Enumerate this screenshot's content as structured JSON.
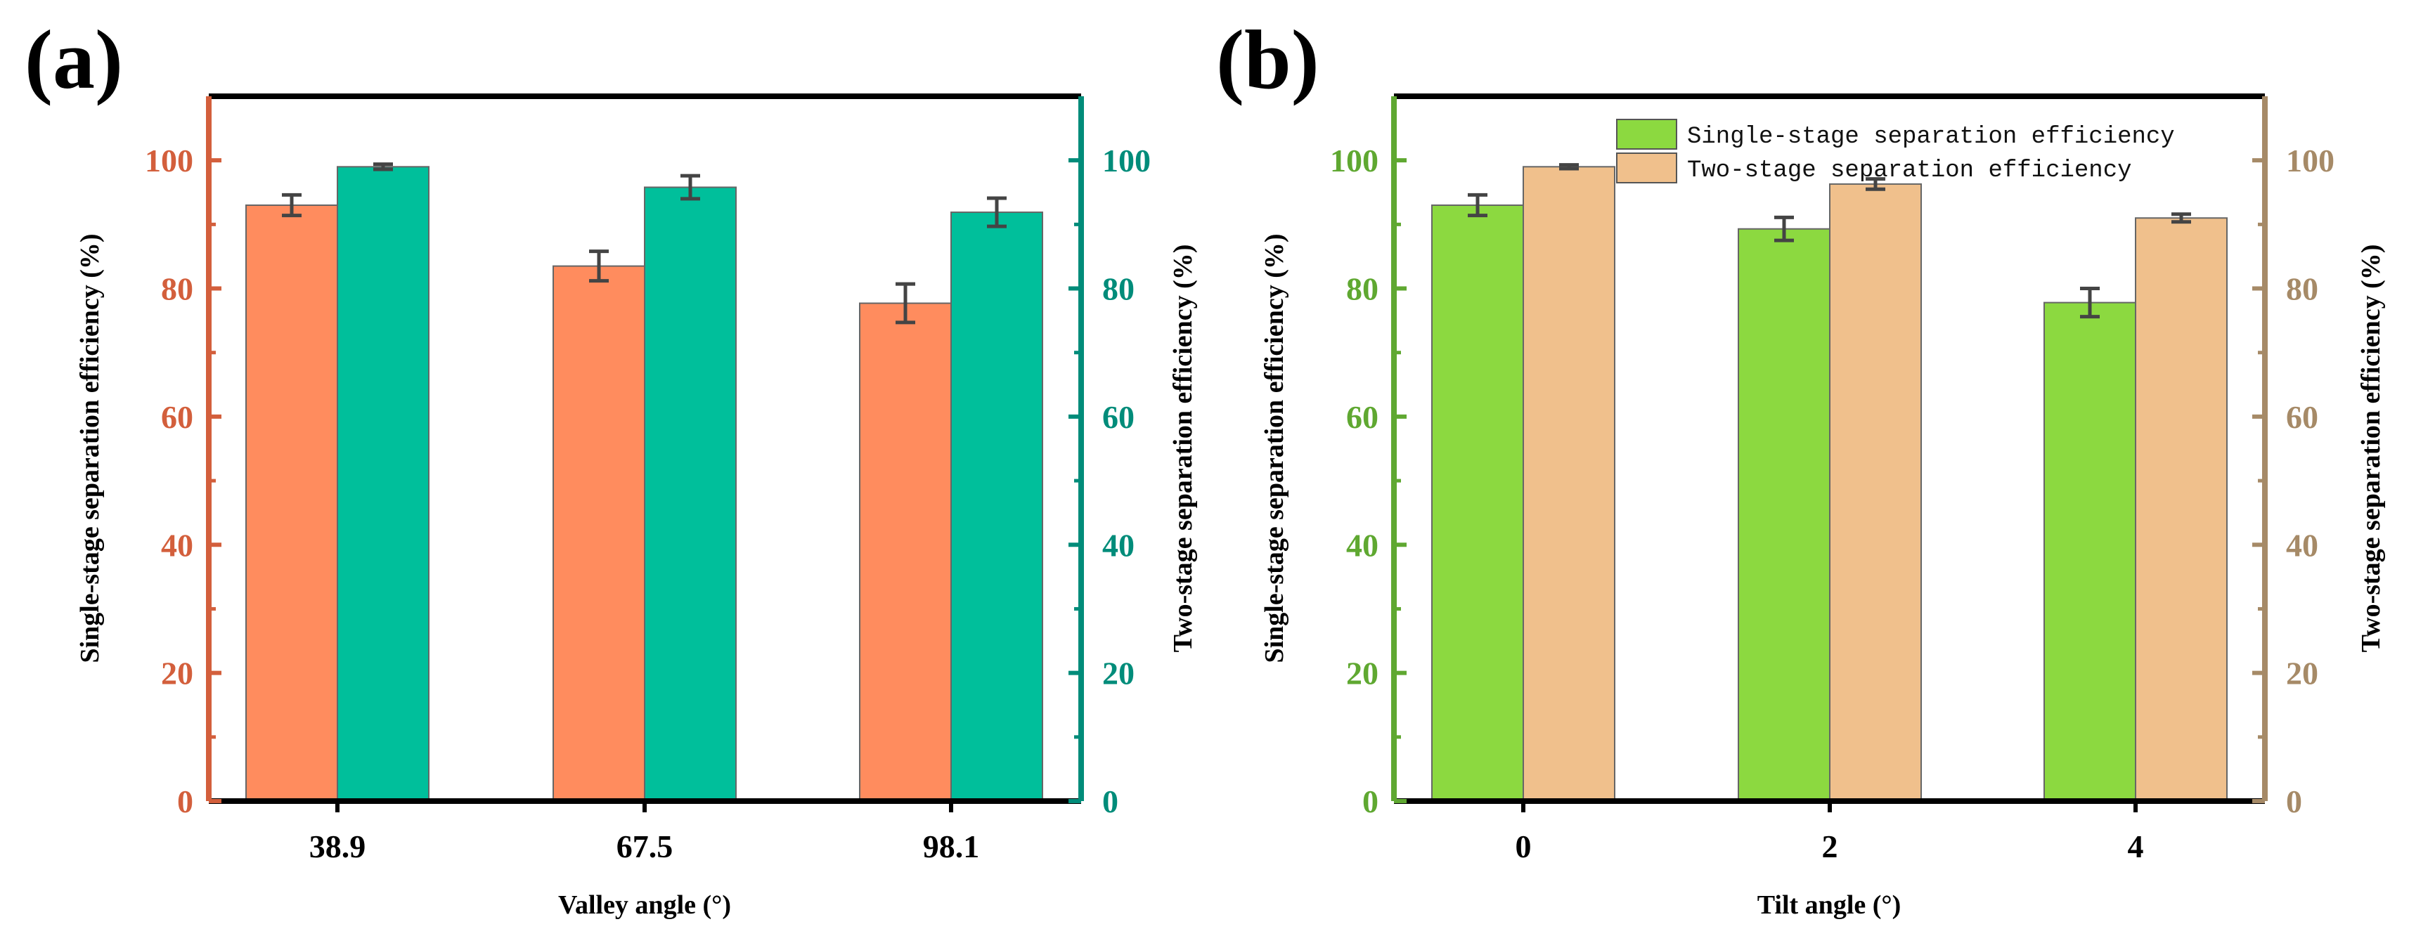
{
  "chart_data": [
    {
      "panel": "(a)",
      "type": "bar",
      "categories": [
        "38.9",
        "67.5",
        "98.1"
      ],
      "series": [
        {
          "name": "Single-stage separation efficiency",
          "axis": "left",
          "color": "#FF8C5E",
          "values": [
            93.0,
            83.5,
            77.7
          ],
          "errors": [
            1.6,
            2.3,
            3.0
          ]
        },
        {
          "name": "Two-stage separation efficiency",
          "axis": "right",
          "color": "#00BF9B",
          "values": [
            99.0,
            95.8,
            91.9
          ],
          "errors": [
            0.4,
            1.8,
            2.2
          ]
        }
      ],
      "xlabel": "Valley angle (°)",
      "ylabel_left": "Single-stage separation efficiency (%)",
      "ylabel_right": "Two-stage separation efficiency (%)",
      "ylim": [
        0,
        110
      ],
      "yticks": [
        0,
        20,
        40,
        60,
        80,
        100
      ],
      "left_axis_color": "#D35F3C",
      "right_axis_color": "#008C7A",
      "legend": null
    },
    {
      "panel": "(b)",
      "type": "bar",
      "categories": [
        "0",
        "2",
        "4"
      ],
      "series": [
        {
          "name": "Single-stage separation efficiency",
          "axis": "left",
          "color": "#8CD940",
          "values": [
            93.0,
            89.3,
            77.8
          ],
          "errors": [
            1.6,
            1.8,
            2.2
          ]
        },
        {
          "name": "Two-stage separation efficiency",
          "axis": "right",
          "color": "#F0C08C",
          "values": [
            99.0,
            96.3,
            91.0
          ],
          "errors": [
            0.3,
            0.8,
            0.6
          ]
        }
      ],
      "xlabel": "Tilt angle (°)",
      "ylabel_left": "Single-stage separation efficiency (%)",
      "ylabel_right": "Two-stage separation efficiency (%)",
      "ylim": [
        0,
        110
      ],
      "yticks": [
        0,
        20,
        40,
        60,
        80,
        100
      ],
      "left_axis_color": "#5FA831",
      "right_axis_color": "#A68A67",
      "legend": "top-right"
    }
  ]
}
